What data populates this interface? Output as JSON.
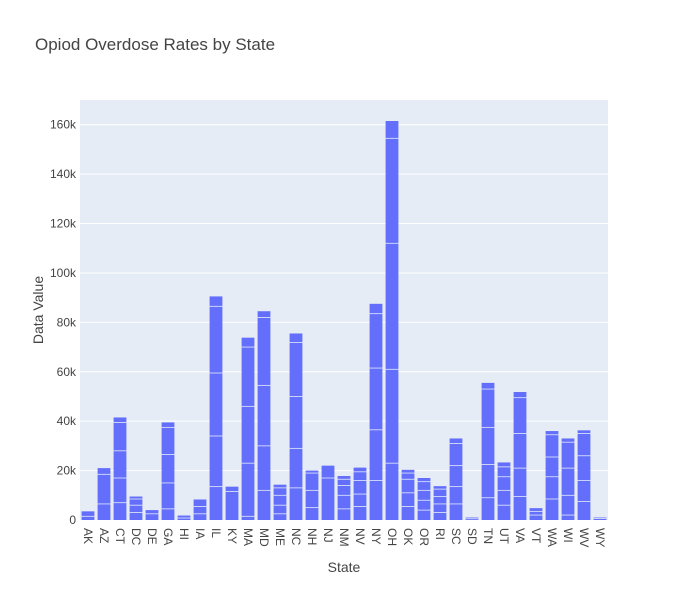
{
  "chart_data": {
    "type": "bar",
    "title": "Opiod Overdose Rates by State",
    "xlabel": "State",
    "ylabel": "Data Value",
    "ylim": [
      0,
      170000
    ],
    "y_ticks": [
      0,
      20000,
      40000,
      60000,
      80000,
      100000,
      120000,
      140000,
      160000
    ],
    "y_tick_labels": [
      "0",
      "20k",
      "40k",
      "60k",
      "80k",
      "100k",
      "120k",
      "140k",
      "160k"
    ],
    "categories": [
      "AK",
      "AZ",
      "CT",
      "DC",
      "DE",
      "GA",
      "HI",
      "IA",
      "IL",
      "KY",
      "MA",
      "MD",
      "ME",
      "NC",
      "NH",
      "NJ",
      "NM",
      "NV",
      "NY",
      "OH",
      "OK",
      "OR",
      "RI",
      "SC",
      "SD",
      "TN",
      "UT",
      "VA",
      "VT",
      "WA",
      "WI",
      "WV",
      "WY"
    ],
    "values": [
      3500,
      21000,
      41500,
      9500,
      4000,
      39500,
      1800,
      8300,
      90500,
      13500,
      73800,
      84500,
      14300,
      75500,
      20000,
      22000,
      17800,
      21200,
      87500,
      161500,
      20300,
      17000,
      13700,
      33000,
      1000,
      55500,
      23300,
      51800,
      4800,
      36000,
      33000,
      36300,
      1000
    ],
    "segment_boundaries": [
      [
        1500
      ],
      [
        6500,
        18500
      ],
      [
        7000,
        17000,
        28000,
        39500
      ],
      [
        3000,
        6000,
        8500
      ],
      [
        2500
      ],
      [
        4500,
        15000,
        26500,
        37500
      ],
      [
        800
      ],
      [
        2500,
        5500
      ],
      [
        13500,
        34000,
        59500,
        86500
      ],
      [
        11500
      ],
      [
        1500,
        23000,
        46000,
        70000
      ],
      [
        12000,
        30000,
        54500,
        82000
      ],
      [
        2500,
        6000,
        10000,
        13000
      ],
      [
        13000,
        29000,
        50000,
        71800
      ],
      [
        5000,
        12000,
        19000
      ],
      [
        17000
      ],
      [
        4500,
        10000,
        14000,
        16500
      ],
      [
        5500,
        10500,
        16000,
        19500
      ],
      [
        16000,
        36500,
        61500,
        83500
      ],
      [
        23000,
        61000,
        112000,
        154500
      ],
      [
        5500,
        11000,
        16500,
        19000
      ],
      [
        4000,
        8000,
        12000,
        15500
      ],
      [
        3000,
        6500,
        9500,
        12500
      ],
      [
        6500,
        13500,
        22000,
        31000
      ],
      [
        500
      ],
      [
        9000,
        22500,
        37500,
        53000
      ],
      [
        6000,
        12000,
        17500,
        21500
      ],
      [
        9500,
        21000,
        35000,
        49500
      ],
      [
        2000,
        3500
      ],
      [
        8500,
        17500,
        25500,
        34500
      ],
      [
        2000,
        10000,
        21000,
        31500
      ],
      [
        7500,
        16000,
        26000,
        35000
      ],
      [
        600
      ]
    ],
    "bar_color": "#636efa",
    "plot_background": "#e5ecf6",
    "grid": true,
    "legend": "none"
  }
}
